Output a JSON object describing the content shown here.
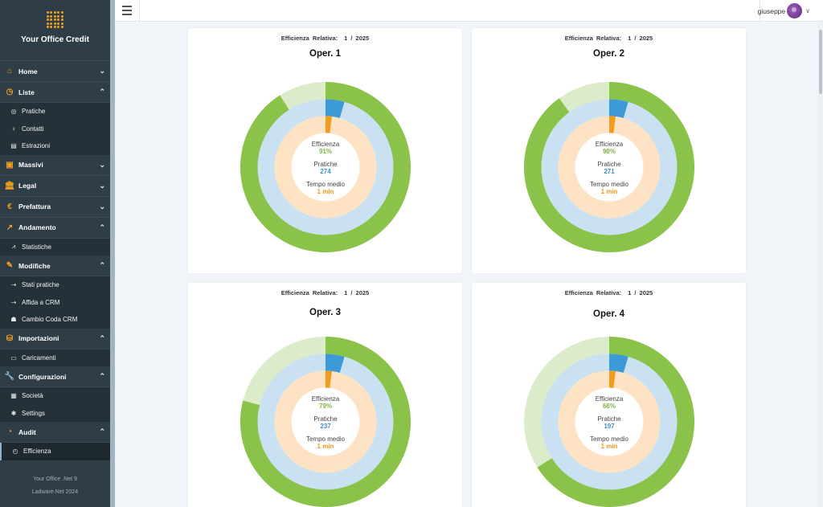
{
  "brand": {
    "name": "Your Office Credit"
  },
  "sidebar": {
    "sections": [
      {
        "label": "Home",
        "icon": "home-icon",
        "chevron": "⌄",
        "items": []
      },
      {
        "label": "Liste",
        "icon": "list-icon",
        "chevron": "⌃",
        "items": [
          {
            "label": "Pratiche",
            "icon": "folder-icon"
          },
          {
            "label": "Contatti",
            "icon": "contact-icon"
          },
          {
            "label": "Estrazioni",
            "icon": "extract-icon"
          }
        ]
      },
      {
        "label": "Massivi",
        "icon": "book-icon",
        "chevron": "⌄",
        "items": []
      },
      {
        "label": "Legal",
        "icon": "bank-icon",
        "chevron": "⌄",
        "items": []
      },
      {
        "label": "Prefattura",
        "icon": "euro-icon",
        "chevron": "⌄",
        "items": []
      },
      {
        "label": "Andamento",
        "icon": "trend-icon",
        "chevron": "⌃",
        "items": [
          {
            "label": "Statistiche",
            "icon": "stats-icon"
          }
        ]
      },
      {
        "label": "Modifiche",
        "icon": "edit-icon",
        "chevron": "⌃",
        "items": [
          {
            "label": "Stati pratiche",
            "icon": "arrows-icon"
          },
          {
            "label": "Affida a CRM",
            "icon": "arrows-icon"
          },
          {
            "label": "Cambio Coda CRM",
            "icon": "users-icon"
          }
        ]
      },
      {
        "label": "Importazioni",
        "icon": "database-icon",
        "chevron": "⌃",
        "items": [
          {
            "label": "Caricamenti",
            "icon": "upload-icon"
          }
        ]
      },
      {
        "label": "Configurazioni",
        "icon": "wrench-icon",
        "chevron": "⌃",
        "items": [
          {
            "label": "Società",
            "icon": "building-icon"
          },
          {
            "label": "Settings",
            "icon": "gear-icon"
          }
        ]
      },
      {
        "label": "Audit",
        "icon": "audit-icon",
        "chevron": "⌃",
        "items": [
          {
            "label": "Efficienza",
            "icon": "gauge-icon",
            "active": true
          }
        ]
      }
    ],
    "footer_line1": "Your Office .Net 9",
    "footer_line2": "Ladware.Net 2024"
  },
  "header": {
    "username": "giuseppe"
  },
  "colors": {
    "outer_green": "#8bc34a",
    "outer_light": "#dceccb",
    "mid_blue": "#c9e1f1",
    "mid_accent": "#3d9ad6",
    "inner_peach": "#fde3c3",
    "inner_accent": "#f29c1f",
    "efficienza_text": "#7cb342",
    "pratiche_text": "#3d8fc6",
    "tempo_text": "#ef9a1c"
  },
  "cards": [
    {
      "heading_label": "Efficienza Relativa:",
      "heading_period": "1 / 2025",
      "operator": "Oper. 1",
      "efficienza_label": "Efficienza",
      "efficienza_value": "91%",
      "pratiche_label": "Pratiche",
      "pratiche_value": "274",
      "tempo_label": "Tempo medio",
      "tempo_value": "1 min",
      "efficiency_fraction": 0.91,
      "mid_fraction": 0.045,
      "inner_fraction": 0.02
    },
    {
      "heading_label": "Efficienza Relativa:",
      "heading_period": "1 / 2025",
      "operator": "Oper. 2",
      "efficienza_label": "Efficienza",
      "efficienza_value": "90%",
      "pratiche_label": "Pratiche",
      "pratiche_value": "271",
      "tempo_label": "Tempo medio",
      "tempo_value": "1 min",
      "efficiency_fraction": 0.9,
      "mid_fraction": 0.045,
      "inner_fraction": 0.02
    },
    {
      "heading_label": "Efficienza Relativa:",
      "heading_period": "1 / 2025",
      "operator": "Oper. 3",
      "efficienza_label": "Efficienza",
      "efficienza_value": "79%",
      "pratiche_label": "Pratiche",
      "pratiche_value": "237",
      "tempo_label": "Tempo medio",
      "tempo_value": "1 min",
      "efficiency_fraction": 0.79,
      "mid_fraction": 0.045,
      "inner_fraction": 0.02
    },
    {
      "heading_label": "Efficienza Relativa:",
      "heading_period": "1 / 2025",
      "operator": "Oper. 4",
      "efficienza_label": "Efficienza",
      "efficienza_value": "66%",
      "pratiche_label": "Pratiche",
      "pratiche_value": "197",
      "tempo_label": "Tempo medio",
      "tempo_value": "1 min",
      "efficiency_fraction": 0.66,
      "mid_fraction": 0.045,
      "inner_fraction": 0.02
    }
  ]
}
